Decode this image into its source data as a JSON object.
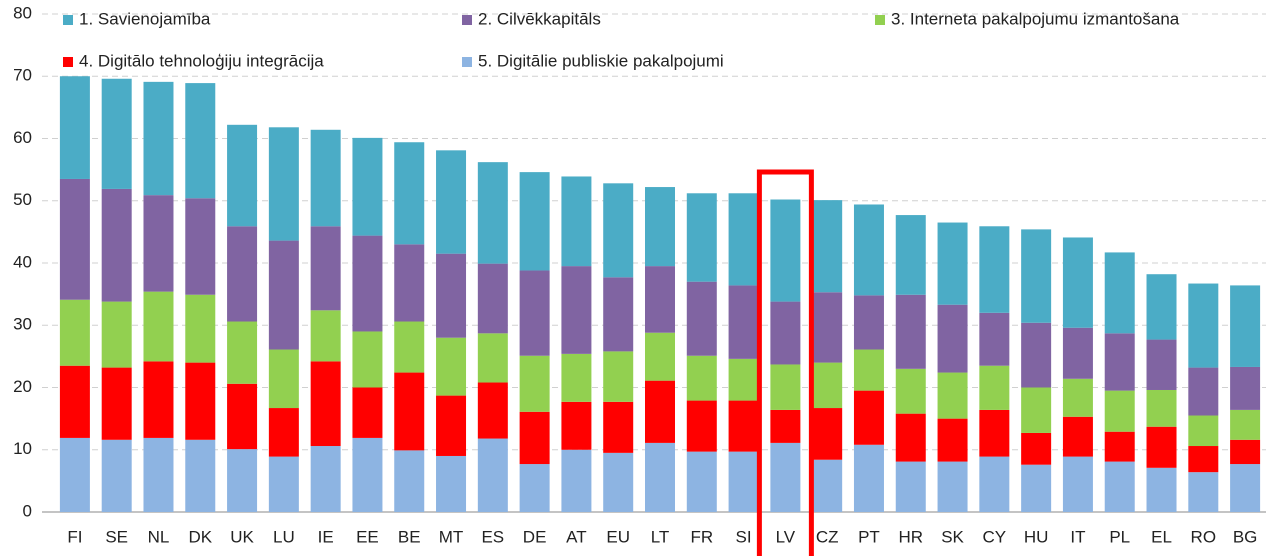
{
  "chart_data": {
    "type": "stacked_bar",
    "categories": [
      "FI",
      "SE",
      "NL",
      "DK",
      "UK",
      "LU",
      "IE",
      "EE",
      "BE",
      "MT",
      "ES",
      "DE",
      "AT",
      "EU",
      "LT",
      "FR",
      "SI",
      "LV",
      "CZ",
      "PT",
      "HR",
      "SK",
      "CY",
      "HU",
      "IT",
      "PL",
      "EL",
      "RO",
      "BG"
    ],
    "series": [
      {
        "name": "1. Savienojamība",
        "color": "#4bacc6",
        "values": [
          16.5,
          17.7,
          18.2,
          18.5,
          16.3,
          18.2,
          15.5,
          15.7,
          16.4,
          16.6,
          16.3,
          15.8,
          14.4,
          15.1,
          12.7,
          14.2,
          14.8,
          16.4,
          14.8,
          14.6,
          12.8,
          13.2,
          13.9,
          15.0,
          14.5,
          13.0,
          10.5,
          13.5,
          13.1
        ]
      },
      {
        "name": "2. Cilvēkkapitāls",
        "color": "#8064a2",
        "values": [
          19.4,
          18.1,
          15.5,
          15.5,
          15.3,
          17.5,
          13.5,
          15.4,
          12.4,
          13.5,
          11.2,
          13.7,
          14.1,
          11.9,
          10.7,
          11.9,
          11.8,
          10.1,
          11.3,
          8.7,
          11.9,
          10.9,
          8.5,
          10.4,
          8.2,
          9.2,
          8.1,
          7.7,
          6.9
        ]
      },
      {
        "name": "3. Interneta pakalpojumu izmantošana",
        "color": "#92d050",
        "values": [
          10.6,
          10.6,
          11.2,
          10.9,
          10.0,
          9.4,
          8.2,
          9.0,
          8.2,
          9.3,
          7.9,
          9.0,
          7.7,
          8.1,
          7.7,
          7.2,
          6.7,
          7.3,
          7.3,
          6.6,
          7.2,
          7.4,
          7.1,
          7.3,
          6.1,
          6.6,
          5.9,
          4.9,
          4.8
        ]
      },
      {
        "name": "4. Digitālo tehnoloģiju integrācija",
        "color": "#ff0000",
        "values": [
          11.6,
          11.6,
          12.3,
          12.4,
          10.5,
          7.8,
          13.6,
          8.1,
          12.5,
          9.7,
          9.0,
          8.4,
          7.7,
          8.2,
          10.0,
          8.2,
          8.2,
          5.3,
          8.3,
          8.7,
          7.7,
          6.9,
          7.5,
          5.1,
          6.4,
          4.8,
          6.6,
          4.2,
          3.9
        ]
      },
      {
        "name": "5. Digitālie publiskie pakalpojumi",
        "color": "#8db4e2",
        "values": [
          11.9,
          11.6,
          11.9,
          11.6,
          10.1,
          8.9,
          10.6,
          11.9,
          9.9,
          9.0,
          11.8,
          7.7,
          10.0,
          9.5,
          11.1,
          9.7,
          9.7,
          11.1,
          8.4,
          10.8,
          8.1,
          8.1,
          8.9,
          7.6,
          8.9,
          8.1,
          7.1,
          6.4,
          7.7
        ]
      }
    ],
    "ylim": [
      0,
      80
    ],
    "yticks": [
      0,
      10,
      20,
      30,
      40,
      50,
      60,
      70,
      80
    ],
    "grid": true,
    "legend": "top"
  }
}
